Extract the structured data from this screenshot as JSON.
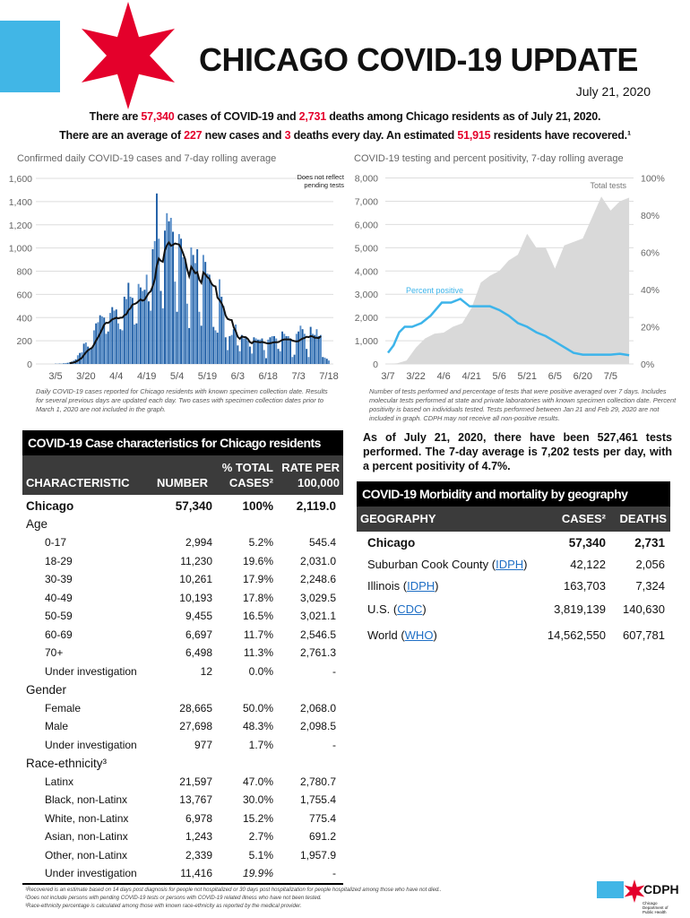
{
  "header": {
    "title": "CHICAGO COVID-19 UPDATE",
    "date": "July 21, 2020"
  },
  "summary": {
    "line1": [
      "There are ",
      "57,340",
      " cases of COVID-19 and ",
      "2,731",
      " deaths among Chicago residents as of July 21, 2020."
    ],
    "line2": [
      "There are an average of ",
      "227",
      " new cases and ",
      "3",
      " deaths every day. An estimated ",
      "51,915",
      " residents have recovered.¹"
    ]
  },
  "colors": {
    "brand_blue": "#41b6e6",
    "brand_red": "#e4002b",
    "bar_blue": "#1f5fa6",
    "positivity_line": "#3db4ea",
    "tests_area": "#d9d9d9"
  },
  "chart_data": [
    {
      "type": "bar",
      "title": "Confirmed daily COVID-19 cases and 7-day rolling average",
      "annotation": "Does not reflect pending tests",
      "start_date": "3/5",
      "x_tick_labels": [
        "3/5",
        "3/20",
        "4/4",
        "4/19",
        "5/4",
        "5/19",
        "6/3",
        "6/18",
        "7/3",
        "7/18"
      ],
      "y_tick_labels": [
        "0",
        "200",
        "400",
        "600",
        "800",
        "1,000",
        "1,200",
        "1,400",
        "1,600"
      ],
      "ylim": [
        0,
        1600
      ],
      "grid": true,
      "series": [
        {
          "type": "bar",
          "values": [
            2,
            2,
            3,
            3,
            5,
            8,
            10,
            15,
            20,
            30,
            40,
            75,
            95,
            100,
            175,
            185,
            150,
            130,
            140,
            290,
            350,
            360,
            420,
            410,
            400,
            260,
            280,
            440,
            490,
            460,
            470,
            350,
            300,
            290,
            580,
            560,
            700,
            580,
            570,
            340,
            350,
            690,
            660,
            630,
            640,
            770,
            540,
            460,
            990,
            1060,
            1470,
            1080,
            630,
            480,
            1150,
            1300,
            1230,
            1260,
            1140,
            710,
            450,
            1120,
            1080,
            920,
            910,
            520,
            310,
            1005,
            940,
            870,
            990,
            450,
            330,
            940,
            880,
            780,
            770,
            700,
            320,
            290,
            270,
            730,
            580,
            500,
            230,
            120,
            240,
            250,
            300,
            340,
            160,
            110,
            250,
            220,
            230,
            200,
            150,
            90,
            230,
            220,
            210,
            210,
            220,
            120,
            50,
            210,
            230,
            240,
            240,
            220,
            130,
            110,
            280,
            260,
            240,
            240,
            220,
            60,
            80,
            260,
            280,
            330,
            300,
            260,
            130,
            60,
            320,
            260,
            250,
            300,
            240,
            250,
            60,
            55,
            45,
            30
          ]
        },
        {
          "type": "line",
          "label": "7-day rolling average"
        }
      ],
      "note": "Daily COVID-19 cases reported for Chicago residents with known specimen collection date. Results for several previous days are updated each day. Two cases with specimen collection dates prior to March 1, 2020 are not included in the graph."
    },
    {
      "type": "area",
      "title": "COVID-19 testing and percent positivity, 7-day rolling average",
      "x_tick_labels": [
        "3/7",
        "3/22",
        "4/6",
        "4/21",
        "5/6",
        "5/21",
        "6/5",
        "6/20",
        "7/5"
      ],
      "y_tick_labels": [
        "0",
        "1,000",
        "2,000",
        "3,000",
        "4,000",
        "5,000",
        "6,000",
        "7,000",
        "8,000"
      ],
      "ylim": [
        0,
        8000
      ],
      "y2_tick_labels": [
        "0%",
        "20%",
        "40%",
        "60%",
        "80%",
        "100%"
      ],
      "y2lim": [
        0,
        100
      ],
      "grid": true,
      "series": [
        {
          "name": "Total tests",
          "type": "area",
          "days": [
            0,
            5,
            10,
            15,
            20,
            25,
            30,
            35,
            40,
            45,
            50,
            55,
            60,
            65,
            70,
            75,
            80,
            85,
            90,
            95,
            100,
            105,
            110,
            115,
            120,
            125,
            130
          ],
          "values": [
            0,
            30,
            150,
            700,
            1100,
            1300,
            1350,
            1600,
            1750,
            2400,
            3500,
            3800,
            4000,
            4450,
            4700,
            5600,
            5000,
            5000,
            4100,
            5100,
            5250,
            5400,
            6300,
            7200,
            6600,
            7000,
            7150
          ]
        },
        {
          "name": "Percent positive",
          "type": "line",
          "days": [
            0,
            3,
            6,
            9,
            13,
            18,
            23,
            29,
            34,
            39,
            44,
            49,
            55,
            60,
            65,
            70,
            75,
            80,
            85,
            90,
            95,
            100,
            105,
            110,
            115,
            120,
            125,
            130
          ],
          "values": [
            6,
            10,
            17,
            20,
            20,
            22,
            26,
            33,
            33,
            35,
            31,
            31,
            31,
            29,
            26,
            22,
            20,
            17,
            15,
            12,
            9,
            6,
            5,
            5,
            5,
            5,
            5.5,
            4.7
          ]
        }
      ],
      "note": "Number of tests performed and percentage of tests that were positive averaged over 7 days. Includes molecular tests performed at state and private laboratories with known specimen collection date. Percent positivity is based on individuals tested. Tests performed between Jan 21 and Feb 29, 2020 are not included in graph. CDPH may not receive all non-positive results."
    }
  ],
  "testing_text": "As of July 21, 2020, there have been 527,461 tests performed. The 7-day average is 7,202 tests per day, with a percent positivity of 4.7%.",
  "case_table": {
    "title": "COVID-19 Case characteristics for Chicago residents",
    "headers": [
      "CHARACTERISTIC",
      "NUMBER",
      "% TOTAL",
      "CASES²",
      "RATE PER",
      "100,000"
    ],
    "rows": [
      {
        "kind": "total",
        "label": "Chicago",
        "number": "57,340",
        "pct": "100%",
        "rate": "2,119.0"
      },
      {
        "kind": "group",
        "label": "Age"
      },
      {
        "label": "0-17",
        "number": "2,994",
        "pct": "5.2%",
        "rate": "545.4"
      },
      {
        "label": "18-29",
        "number": "11,230",
        "pct": "19.6%",
        "rate": "2,031.0"
      },
      {
        "label": "30-39",
        "number": "10,261",
        "pct": "17.9%",
        "rate": "2,248.6"
      },
      {
        "label": "40-49",
        "number": "10,193",
        "pct": "17.8%",
        "rate": "3,029.5"
      },
      {
        "label": "50-59",
        "number": "9,455",
        "pct": "16.5%",
        "rate": "3,021.1"
      },
      {
        "label": "60-69",
        "number": "6,697",
        "pct": "11.7%",
        "rate": "2,546.5"
      },
      {
        "label": "70+",
        "number": "6,498",
        "pct": "11.3%",
        "rate": "2,761.3"
      },
      {
        "label": "Under investigation",
        "number": "12",
        "pct": "0.0%",
        "rate": "-"
      },
      {
        "kind": "group",
        "label": "Gender"
      },
      {
        "label": "Female",
        "number": "28,665",
        "pct": "50.0%",
        "rate": "2,068.0"
      },
      {
        "label": "Male",
        "number": "27,698",
        "pct": "48.3%",
        "rate": "2,098.5"
      },
      {
        "label": "Under investigation",
        "number": "977",
        "pct": "1.7%",
        "rate": "-"
      },
      {
        "kind": "group",
        "label": "Race-ethnicity³"
      },
      {
        "label": "Latinx",
        "number": "21,597",
        "pct": "47.0%",
        "rate": "2,780.7"
      },
      {
        "label": "Black, non-Latinx",
        "number": "13,767",
        "pct": "30.0%",
        "rate": "1,755.4"
      },
      {
        "label": "White, non-Latinx",
        "number": "6,978",
        "pct": "15.2%",
        "rate": "775.4"
      },
      {
        "label": "Asian, non-Latinx",
        "number": "1,243",
        "pct": "2.7%",
        "rate": "691.2"
      },
      {
        "label": "Other, non-Latinx",
        "number": "2,339",
        "pct": "5.1%",
        "rate": "1,957.9"
      },
      {
        "label": "Under investigation",
        "number": "11,416",
        "pct": "19.9%",
        "rate": "-",
        "pct_italic": true
      }
    ]
  },
  "geo_table": {
    "title": "COVID-19 Morbidity and mortality by geography",
    "headers": [
      "GEOGRAPHY",
      "CASES²",
      "DEATHS"
    ],
    "rows": [
      {
        "label": "Chicago",
        "cases": "57,340",
        "deaths": "2,731",
        "bold": true
      },
      {
        "label": "Suburban Cook County (",
        "link": "IDPH",
        "after": ")",
        "cases": "42,122",
        "deaths": "2,056"
      },
      {
        "label": "Illinois (",
        "link": "IDPH",
        "after": ")",
        "cases": "163,703",
        "deaths": "7,324"
      },
      {
        "label": "U.S. (",
        "link": "CDC",
        "after": ")",
        "cases": "3,819,139",
        "deaths": "140,630"
      },
      {
        "label": "World  (",
        "link": "WHO",
        "after": ")",
        "cases": "14,562,550",
        "deaths": "607,781"
      }
    ]
  },
  "footnotes": [
    "¹Recovered is an estimate based on 14 days post diagnosis for people not hospitalized or 30 days post hospitalization for people hospitalized among those who have not died..",
    "²Does not include persons with pending COVID-19 tests or persons with COVID-19 related illness who have not been tested.",
    "³Race-ethnicity percentage is calculated among those with known race-ethnicity as reported by the medical provider."
  ],
  "logo": {
    "text": "CDPH",
    "subtext": "Chicago Department of Public Health"
  }
}
